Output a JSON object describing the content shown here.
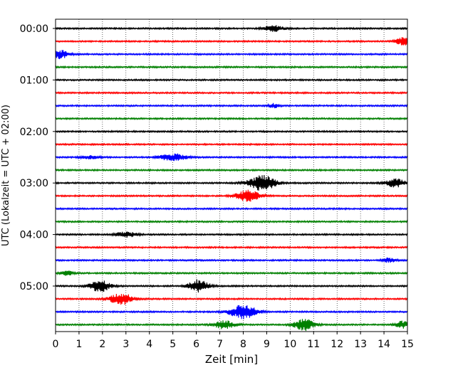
{
  "chart_data": {
    "type": "line",
    "title": "",
    "xlabel": "Zeit  [min]",
    "ylabel": "UTC (Lokalzeit = UTC + 02:00)",
    "xlim": [
      0,
      15
    ],
    "x_ticks": [
      0,
      1,
      2,
      3,
      4,
      5,
      6,
      7,
      8,
      9,
      10,
      11,
      12,
      13,
      14,
      15
    ],
    "x_grid": "dotted vertical",
    "y_ticks": [
      {
        "label": "00:00",
        "trace": 0
      },
      {
        "label": "01:00",
        "trace": 4
      },
      {
        "label": "02:00",
        "trace": 8
      },
      {
        "label": "03:00",
        "trace": 12
      },
      {
        "label": "04:00",
        "trace": 16
      },
      {
        "label": "05:00",
        "trace": 20
      }
    ],
    "trace_minutes": 15,
    "color_cycle": [
      "#000000",
      "#ff0000",
      "#0000ff",
      "#008000"
    ],
    "series": [
      {
        "start": "00:00",
        "events": [
          {
            "t": 9.3,
            "amp": 4,
            "width": 0.6
          }
        ]
      },
      {
        "start": "00:15",
        "events": [
          {
            "t": 14.8,
            "amp": 6,
            "width": 0.4
          }
        ]
      },
      {
        "start": "00:30",
        "events": [
          {
            "t": 0.2,
            "amp": 6,
            "width": 0.5
          }
        ]
      },
      {
        "start": "00:45",
        "events": []
      },
      {
        "start": "01:00",
        "events": []
      },
      {
        "start": "01:15",
        "events": []
      },
      {
        "start": "01:30",
        "events": [
          {
            "t": 9.3,
            "amp": 3,
            "width": 0.3
          }
        ]
      },
      {
        "start": "01:45",
        "events": []
      },
      {
        "start": "02:00",
        "events": []
      },
      {
        "start": "02:15",
        "events": []
      },
      {
        "start": "02:30",
        "events": [
          {
            "t": 5.0,
            "amp": 5,
            "width": 0.8
          },
          {
            "t": 1.5,
            "amp": 2,
            "width": 0.6
          }
        ]
      },
      {
        "start": "02:45",
        "events": []
      },
      {
        "start": "03:00",
        "events": [
          {
            "t": 8.8,
            "amp": 11,
            "width": 0.8
          },
          {
            "t": 14.5,
            "amp": 6,
            "width": 0.6
          }
        ]
      },
      {
        "start": "03:15",
        "events": [
          {
            "t": 8.2,
            "amp": 8,
            "width": 0.7
          }
        ]
      },
      {
        "start": "03:30",
        "events": []
      },
      {
        "start": "03:45",
        "events": []
      },
      {
        "start": "04:00",
        "events": [
          {
            "t": 3.0,
            "amp": 4,
            "width": 0.6
          }
        ]
      },
      {
        "start": "04:15",
        "events": []
      },
      {
        "start": "04:30",
        "events": [
          {
            "t": 14.2,
            "amp": 3,
            "width": 0.4
          }
        ]
      },
      {
        "start": "04:45",
        "events": [
          {
            "t": 0.5,
            "amp": 3,
            "width": 0.4
          }
        ]
      },
      {
        "start": "05:00",
        "events": [
          {
            "t": 1.9,
            "amp": 9,
            "width": 0.6
          },
          {
            "t": 6.1,
            "amp": 9,
            "width": 0.6
          }
        ]
      },
      {
        "start": "05:15",
        "events": [
          {
            "t": 2.8,
            "amp": 8,
            "width": 0.7
          }
        ]
      },
      {
        "start": "05:30",
        "events": [
          {
            "t": 8.0,
            "amp": 10,
            "width": 0.8
          }
        ]
      },
      {
        "start": "05:45",
        "events": [
          {
            "t": 7.2,
            "amp": 6,
            "width": 0.6
          },
          {
            "t": 10.6,
            "amp": 8,
            "width": 0.6
          },
          {
            "t": 14.8,
            "amp": 5,
            "width": 0.4
          }
        ]
      }
    ]
  }
}
